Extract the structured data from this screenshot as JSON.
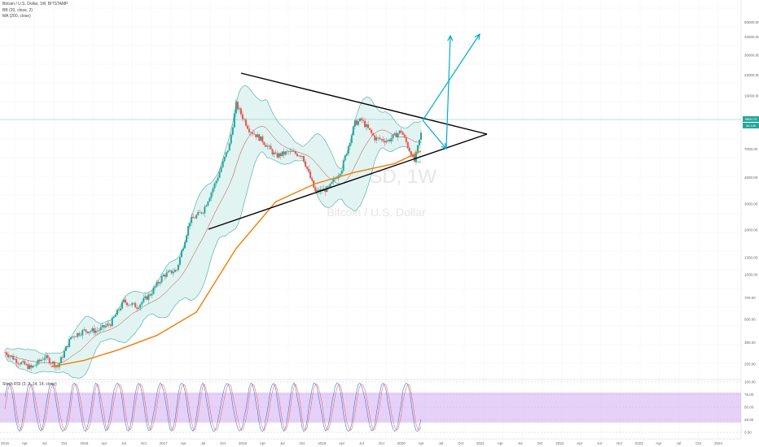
{
  "legend": {
    "symbol_line": "Bitcoin / U.S. Dollar, 1W, BITSTAMP",
    "bb_line": "BB (20, close, 2)",
    "ma_line": "MA (200, close)"
  },
  "watermark": {
    "ticker": "BTCUSD, 1W",
    "name": "Bitcoin / U.S. Dollar"
  },
  "price_tags": {
    "last": "9800.70",
    "countdown": "3d 14h"
  },
  "oscillator": {
    "label": "Stoch RSI (3, 3, 14, 14, close)",
    "levels": [
      "100.00",
      "75.00",
      "50.00",
      "25.00",
      "0.00"
    ]
  },
  "colors": {
    "candle_up": "#26a69a",
    "candle_down": "#ef5350",
    "bb_fill": "#dff3f1",
    "bb_band": "#3fa9a0",
    "bb_basis": "#b0403a",
    "ma200": "#f57c00",
    "projection": "#00aec8",
    "stoch_band": "#d9b8f5",
    "stoch_k": "#3a7bd5",
    "stoch_d": "#ef6c6c"
  },
  "chart_data": {
    "type": "line",
    "scale": "log",
    "y_axis_ticks": [
      "50000.00",
      "40000.00",
      "30000.00",
      "22000.00",
      "16000.00",
      "11000.00",
      "7000.00",
      "4500.00",
      "3000.00",
      "2000.00",
      "1300.00",
      "1000.00",
      "700.00",
      "500.00",
      "350.00",
      "250.00"
    ],
    "x_axis_ticks": [
      "2015",
      "Apr",
      "Jul",
      "Oct",
      "2016",
      "Apr",
      "Jul",
      "Oct",
      "2017",
      "Apr",
      "Jul",
      "Oct",
      "2018",
      "Apr",
      "Jul",
      "Oct",
      "2019",
      "Apr",
      "Jul",
      "Oct",
      "2020",
      "Apr",
      "Jul",
      "Oct",
      "2021",
      "Apr",
      "Jul",
      "Oct",
      "2022",
      "Apr",
      "Jul",
      "Oct",
      "2023",
      "Apr",
      "Jul",
      "Oct",
      "2024",
      "Apr",
      "Jul"
    ],
    "series": [
      {
        "name": "BTCUSD weekly close",
        "x": [
          "2015-01",
          "2015-03",
          "2015-05",
          "2015-07",
          "2015-09",
          "2015-11",
          "2016-01",
          "2016-03",
          "2016-05",
          "2016-07",
          "2016-09",
          "2016-11",
          "2017-01",
          "2017-03",
          "2017-05",
          "2017-07",
          "2017-09",
          "2017-11",
          "2017-12",
          "2018-02",
          "2018-04",
          "2018-06",
          "2018-08",
          "2018-10",
          "2018-12",
          "2019-02",
          "2019-04",
          "2019-06",
          "2019-07",
          "2019-09",
          "2019-11",
          "2020-01",
          "2020-03",
          "2020-04"
        ],
        "values": [
          300,
          260,
          235,
          280,
          240,
          380,
          420,
          420,
          470,
          660,
          610,
          740,
          990,
          1080,
          2300,
          2700,
          4300,
          7500,
          14000,
          9500,
          8000,
          6300,
          6700,
          6400,
          3600,
          3800,
          5200,
          10500,
          11000,
          8300,
          8000,
          9300,
          5800,
          8900
        ]
      },
      {
        "name": "MA 200",
        "x": [
          "2015-08",
          "2016-01",
          "2016-06",
          "2016-12",
          "2017-06",
          "2017-12",
          "2018-06",
          "2018-12",
          "2019-06",
          "2019-12",
          "2020-04"
        ],
        "values": [
          240,
          265,
          310,
          390,
          560,
          1500,
          3100,
          4100,
          4900,
          5600,
          6800
        ]
      }
    ],
    "annotations": {
      "triangle_upper": [
        [
          "2017-12",
          19500
        ],
        [
          "2020-07",
          8800
        ]
      ],
      "triangle_lower": [
        [
          "2017-07",
          1800
        ],
        [
          "2020-07",
          8800
        ]
      ],
      "projection_1": [
        [
          "2020-04",
          9600
        ],
        [
          "2020-06",
          7200
        ],
        [
          "2020-08",
          40000
        ]
      ],
      "projection_2": [
        [
          "2020-04",
          9600
        ],
        [
          "2020-09",
          40000
        ]
      ]
    }
  }
}
